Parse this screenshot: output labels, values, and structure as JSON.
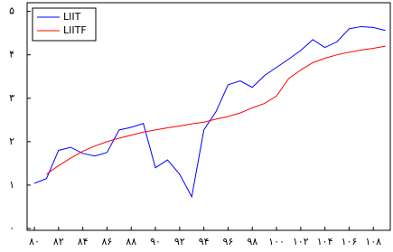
{
  "chart_data": {
    "type": "line",
    "x": [
      80,
      81,
      82,
      83,
      84,
      85,
      86,
      87,
      88,
      89,
      90,
      91,
      92,
      93,
      94,
      95,
      96,
      97,
      98,
      99,
      100,
      101,
      102,
      103,
      104,
      105,
      106,
      107,
      108,
      109
    ],
    "series": [
      {
        "name": "LIIT",
        "color": "#0000ff",
        "values": [
          1.04,
          1.15,
          1.8,
          1.87,
          1.73,
          1.67,
          1.75,
          2.27,
          2.33,
          2.42,
          1.4,
          1.58,
          1.25,
          0.73,
          2.27,
          2.69,
          3.31,
          3.4,
          3.25,
          3.52,
          3.71,
          3.9,
          4.1,
          4.35,
          4.17,
          4.3,
          4.6,
          4.65,
          4.63,
          4.56
        ]
      },
      {
        "name": "LIITF",
        "color": "#ff0000",
        "values": [
          null,
          1.25,
          1.45,
          1.62,
          1.78,
          1.9,
          2.0,
          2.08,
          2.15,
          2.22,
          2.27,
          2.32,
          2.36,
          2.41,
          2.45,
          2.52,
          2.58,
          2.66,
          2.78,
          2.88,
          3.05,
          3.45,
          3.65,
          3.82,
          3.92,
          4.0,
          4.06,
          4.11,
          4.15,
          4.2
        ]
      }
    ],
    "xlim": [
      79.4,
      109.4
    ],
    "ylim": [
      0,
      5.2
    ],
    "xticks": [
      {
        "value": 80,
        "label": "۸۰"
      },
      {
        "value": 82,
        "label": "۸۲"
      },
      {
        "value": 84,
        "label": "۸۴"
      },
      {
        "value": 86,
        "label": "۸۶"
      },
      {
        "value": 88,
        "label": "۸۸"
      },
      {
        "value": 90,
        "label": "۹۰"
      },
      {
        "value": 92,
        "label": "۹۲"
      },
      {
        "value": 94,
        "label": "۹۴"
      },
      {
        "value": 96,
        "label": "۹۶"
      },
      {
        "value": 98,
        "label": "۹۸"
      },
      {
        "value": 100,
        "label": "۱۰۰"
      },
      {
        "value": 102,
        "label": "۱۰۲"
      },
      {
        "value": 104,
        "label": "۱۰۴"
      },
      {
        "value": 106,
        "label": "۱۰۶"
      },
      {
        "value": 108,
        "label": "۱۰۸"
      }
    ],
    "yticks": [
      {
        "value": 0,
        "label": "۰"
      },
      {
        "value": 1,
        "label": "۱"
      },
      {
        "value": 2,
        "label": "۲"
      },
      {
        "value": 3,
        "label": "۳"
      },
      {
        "value": 4,
        "label": "۴"
      },
      {
        "value": 5,
        "label": "۵"
      }
    ],
    "legend": "top-left"
  }
}
